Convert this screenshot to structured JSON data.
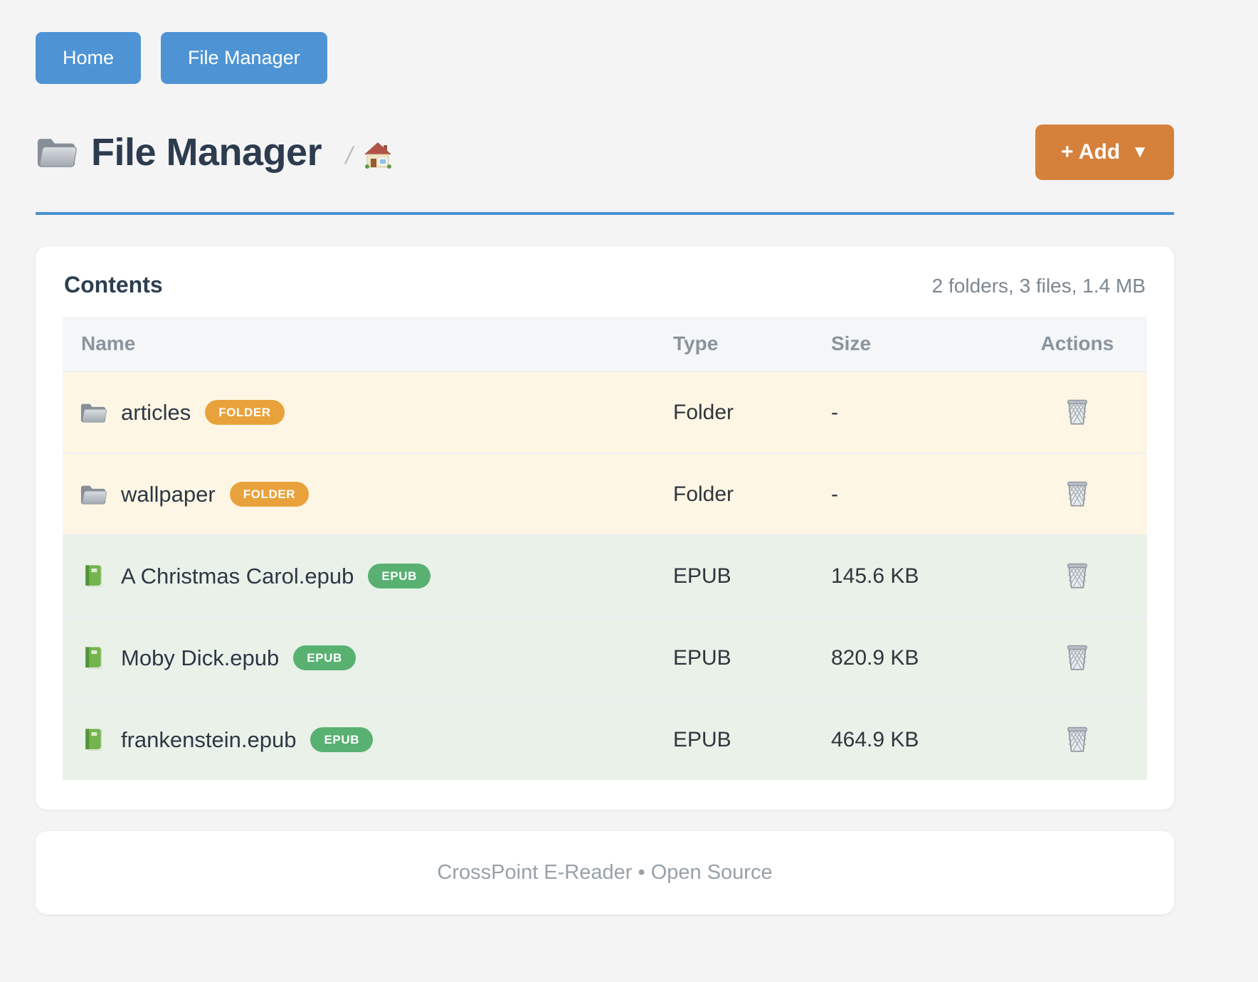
{
  "nav": {
    "buttons": [
      {
        "label": "Home"
      },
      {
        "label": "File Manager"
      }
    ]
  },
  "header": {
    "title": "File Manager",
    "title_icon": "folder-icon",
    "breadcrumb_separator": "/",
    "breadcrumb_home_icon": "house-icon",
    "add_button": {
      "label": "+ Add",
      "caret": "▼"
    }
  },
  "contents": {
    "heading": "Contents",
    "summary": "2 folders, 3 files, 1.4 MB",
    "table": {
      "headers": [
        "Name",
        "Type",
        "Size",
        "Actions"
      ],
      "rows": [
        {
          "name": "articles",
          "icon": "folder-icon",
          "badge": "FOLDER",
          "kind": "folder",
          "type": "Folder",
          "size": "-",
          "action_icon": "trash-icon"
        },
        {
          "name": "wallpaper",
          "icon": "folder-icon",
          "badge": "FOLDER",
          "kind": "folder",
          "type": "Folder",
          "size": "-",
          "action_icon": "trash-icon"
        },
        {
          "name": "A Christmas Carol.epub",
          "icon": "book-icon",
          "badge": "EPUB",
          "kind": "epub",
          "type": "EPUB",
          "size": "145.6 KB",
          "action_icon": "trash-icon"
        },
        {
          "name": "Moby Dick.epub",
          "icon": "book-icon",
          "badge": "EPUB",
          "kind": "epub",
          "type": "EPUB",
          "size": "820.9 KB",
          "action_icon": "trash-icon"
        },
        {
          "name": "frankenstein.epub",
          "icon": "book-icon",
          "badge": "EPUB",
          "kind": "epub",
          "type": "EPUB",
          "size": "464.9 KB",
          "action_icon": "trash-icon"
        }
      ]
    }
  },
  "footer": {
    "text": "CrossPoint E-Reader • Open Source"
  },
  "colors": {
    "page_bg": "#f4f4f5",
    "nav_button": "#4e94d4",
    "add_button": "#d5813c",
    "divider": "#4a90d2",
    "folder_badge": "#e9a23b",
    "epub_badge": "#58b171",
    "folder_row_bg": "#fdf6e4",
    "epub_row_bg": "#e9f1e9",
    "table_header_bg": "#f4f6f8"
  }
}
